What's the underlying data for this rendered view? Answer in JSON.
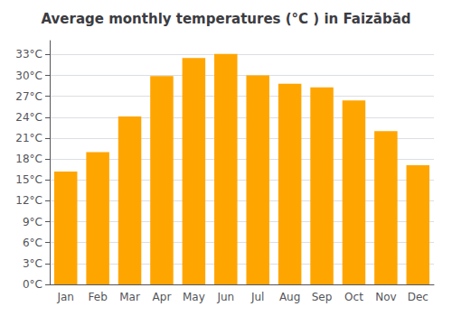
{
  "chart_data": {
    "type": "bar",
    "title": "Average monthly temperatures (°C ) in Faizābād",
    "categories": [
      "Jan",
      "Feb",
      "Mar",
      "Apr",
      "May",
      "Jun",
      "Jul",
      "Aug",
      "Sep",
      "Oct",
      "Nov",
      "Dec"
    ],
    "values": [
      16.2,
      19.0,
      24.1,
      29.9,
      32.5,
      33.1,
      30.0,
      28.8,
      28.3,
      26.4,
      22.0,
      17.1
    ],
    "color": "#FFA500",
    "ylim": [
      0,
      35
    ],
    "yticks": [
      {
        "value": 0,
        "label": "0°C"
      },
      {
        "value": 3,
        "label": "3°C"
      },
      {
        "value": 6,
        "label": "6°C"
      },
      {
        "value": 9,
        "label": "9°C"
      },
      {
        "value": 12,
        "label": "12°C"
      },
      {
        "value": 15,
        "label": "15°C"
      },
      {
        "value": 18,
        "label": "18°C"
      },
      {
        "value": 21,
        "label": "21°C"
      },
      {
        "value": 24,
        "label": "24°C"
      },
      {
        "value": 27,
        "label": "27°C"
      },
      {
        "value": 30,
        "label": "30°C"
      },
      {
        "value": 33,
        "label": "33°C"
      }
    ],
    "grid": true
  }
}
